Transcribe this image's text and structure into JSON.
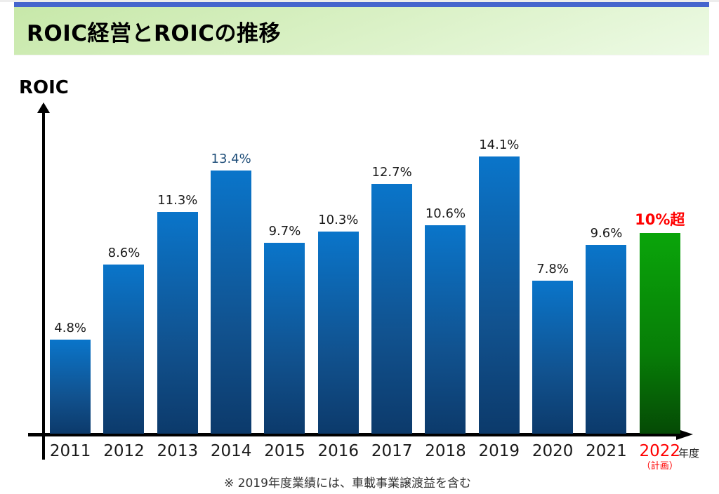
{
  "slide": {
    "header": {
      "title": "ROIC経営とROICの推移",
      "accent_bar_color": "#4565cd",
      "background_gradient": [
        "#c7e8a9",
        "#edfae5"
      ],
      "title_color": "#000000"
    }
  },
  "chart_data": {
    "type": "bar",
    "title": "ROIC経営とROICの推移",
    "ylabel": "ROIC",
    "xlabel": "年度",
    "value_unit": "%",
    "grid": false,
    "legend": "none",
    "axis_style": "black arrows, no ticks, values labeled on bars",
    "ylim": [
      0,
      16
    ],
    "footnote": "※ 2019年度業績には、車載事業譲渡益を含む",
    "categories": [
      "2011",
      "2012",
      "2013",
      "2014",
      "2015",
      "2016",
      "2017",
      "2018",
      "2019",
      "2020",
      "2021",
      "2022"
    ],
    "values": [
      4.8,
      8.6,
      11.3,
      13.4,
      9.7,
      10.3,
      12.7,
      10.6,
      14.1,
      7.8,
      9.6,
      10.2
    ],
    "default_colors": {
      "bar_blue_gradient": [
        "#0a75ca",
        "#11528f",
        "#0c3a6b"
      ],
      "bar_green_gradient": [
        "#0aa50a",
        "#077d07",
        "#054a05"
      ],
      "label_black": "#1a1a1a",
      "label_navy": "#1f4e79",
      "label_red": "#ff0000"
    },
    "bars": [
      {
        "year": "2011",
        "value": 4.8,
        "label": "4.8%",
        "label_color": "#1a1a1a",
        "label_bold": false,
        "bar_colors": [
          "#0a75ca",
          "#11528f",
          "#0c3a6b"
        ],
        "year_color": "#1a1a1a"
      },
      {
        "year": "2012",
        "value": 8.6,
        "label": "8.6%",
        "label_color": "#1a1a1a",
        "label_bold": false,
        "bar_colors": [
          "#0a75ca",
          "#11528f",
          "#0c3a6b"
        ],
        "year_color": "#1a1a1a"
      },
      {
        "year": "2013",
        "value": 11.3,
        "label": "11.3%",
        "label_color": "#1a1a1a",
        "label_bold": false,
        "bar_colors": [
          "#0a75ca",
          "#11528f",
          "#0c3a6b"
        ],
        "year_color": "#1a1a1a"
      },
      {
        "year": "2014",
        "value": 13.4,
        "label": "13.4%",
        "label_color": "#1f4e79",
        "label_bold": false,
        "bar_colors": [
          "#0a75ca",
          "#11528f",
          "#0c3a6b"
        ],
        "year_color": "#1a1a1a"
      },
      {
        "year": "2015",
        "value": 9.7,
        "label": "9.7%",
        "label_color": "#1a1a1a",
        "label_bold": false,
        "bar_colors": [
          "#0a75ca",
          "#11528f",
          "#0c3a6b"
        ],
        "year_color": "#1a1a1a"
      },
      {
        "year": "2016",
        "value": 10.3,
        "label": "10.3%",
        "label_color": "#1a1a1a",
        "label_bold": false,
        "bar_colors": [
          "#0a75ca",
          "#11528f",
          "#0c3a6b"
        ],
        "year_color": "#1a1a1a"
      },
      {
        "year": "2017",
        "value": 12.7,
        "label": "12.7%",
        "label_color": "#1a1a1a",
        "label_bold": false,
        "bar_colors": [
          "#0a75ca",
          "#11528f",
          "#0c3a6b"
        ],
        "year_color": "#1a1a1a"
      },
      {
        "year": "2018",
        "value": 10.6,
        "label": "10.6%",
        "label_color": "#1a1a1a",
        "label_bold": false,
        "bar_colors": [
          "#0a75ca",
          "#11528f",
          "#0c3a6b"
        ],
        "year_color": "#1a1a1a"
      },
      {
        "year": "2019",
        "value": 14.1,
        "label": "14.1%",
        "label_color": "#1a1a1a",
        "label_bold": false,
        "bar_colors": [
          "#0a75ca",
          "#11528f",
          "#0c3a6b"
        ],
        "year_color": "#1a1a1a"
      },
      {
        "year": "2020",
        "value": 7.8,
        "label": "7.8%",
        "label_color": "#1a1a1a",
        "label_bold": false,
        "bar_colors": [
          "#0a75ca",
          "#11528f",
          "#0c3a6b"
        ],
        "year_color": "#1a1a1a"
      },
      {
        "year": "2021",
        "value": 9.6,
        "label": "9.6%",
        "label_color": "#1a1a1a",
        "label_bold": false,
        "bar_colors": [
          "#0a75ca",
          "#11528f",
          "#0c3a6b"
        ],
        "year_color": "#1a1a1a"
      },
      {
        "year": "2022",
        "value": 10.2,
        "label": "10%超",
        "label_color": "#ff0000",
        "label_bold": true,
        "bar_colors": [
          "#0aa50a",
          "#077d07",
          "#054a05"
        ],
        "year_color": "#ff0000",
        "year_note": "（計画）"
      }
    ]
  }
}
